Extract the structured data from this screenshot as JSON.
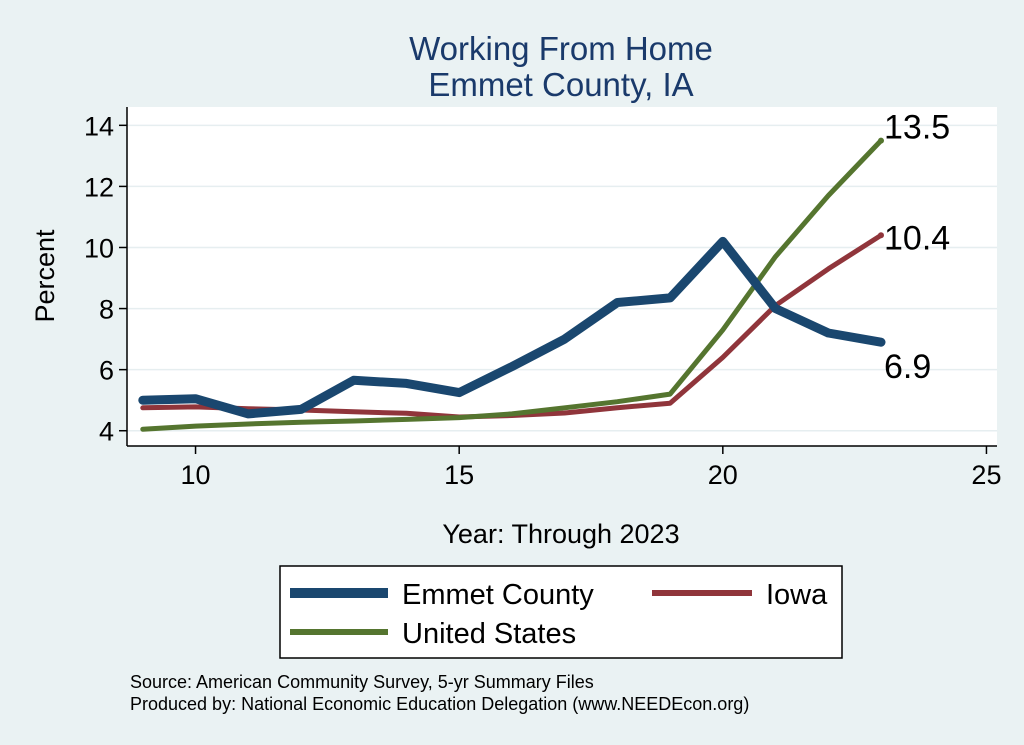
{
  "chart_data": {
    "type": "line",
    "title": "Working From Home",
    "subtitle": "Emmet County, IA",
    "xlabel": "Year: Through 2023",
    "ylabel": "Percent",
    "xlim": [
      8.7,
      25.2
    ],
    "ylim": [
      3.5,
      14.6
    ],
    "xticks": [
      10,
      15,
      20,
      25
    ],
    "yticks": [
      4,
      6,
      8,
      10,
      12,
      14
    ],
    "grid": true,
    "legend_position": "bottom",
    "series": [
      {
        "name": "Emmet County",
        "color": "#1a476f",
        "width": 9,
        "x": [
          9,
          10,
          11,
          12,
          13,
          14,
          15,
          16,
          17,
          18,
          19,
          20,
          21,
          22,
          23
        ],
        "y": [
          5.0,
          5.05,
          4.55,
          4.7,
          5.65,
          5.55,
          5.25,
          6.1,
          7.0,
          8.2,
          8.35,
          10.2,
          8.0,
          7.2,
          6.9
        ],
        "end_label": "6.9"
      },
      {
        "name": "Iowa",
        "color": "#90353b",
        "width": 5,
        "x": [
          9,
          10,
          11,
          12,
          13,
          14,
          15,
          16,
          17,
          18,
          19,
          20,
          21,
          22,
          23
        ],
        "y": [
          4.75,
          4.78,
          4.72,
          4.68,
          4.62,
          4.57,
          4.45,
          4.5,
          4.58,
          4.75,
          4.9,
          6.4,
          8.1,
          9.3,
          10.4
        ],
        "end_label": "10.4"
      },
      {
        "name": "United States",
        "color": "#55752f",
        "width": 5,
        "x": [
          9,
          10,
          11,
          12,
          13,
          14,
          15,
          16,
          17,
          18,
          19,
          20,
          21,
          22,
          23
        ],
        "y": [
          4.05,
          4.15,
          4.22,
          4.28,
          4.32,
          4.37,
          4.43,
          4.55,
          4.75,
          4.95,
          5.2,
          7.3,
          9.7,
          11.7,
          13.5
        ],
        "end_label": "13.5"
      }
    ],
    "legend": {
      "items": [
        {
          "label": "Emmet County",
          "series": 0
        },
        {
          "label": "Iowa",
          "series": 1
        },
        {
          "label": "United States",
          "series": 2
        }
      ]
    }
  },
  "footer": {
    "source": "Source: American Community Survey, 5-yr Summary Files",
    "produced_by": "Produced by: National Economic Education Delegation (www.NEEDEcon.org)"
  }
}
